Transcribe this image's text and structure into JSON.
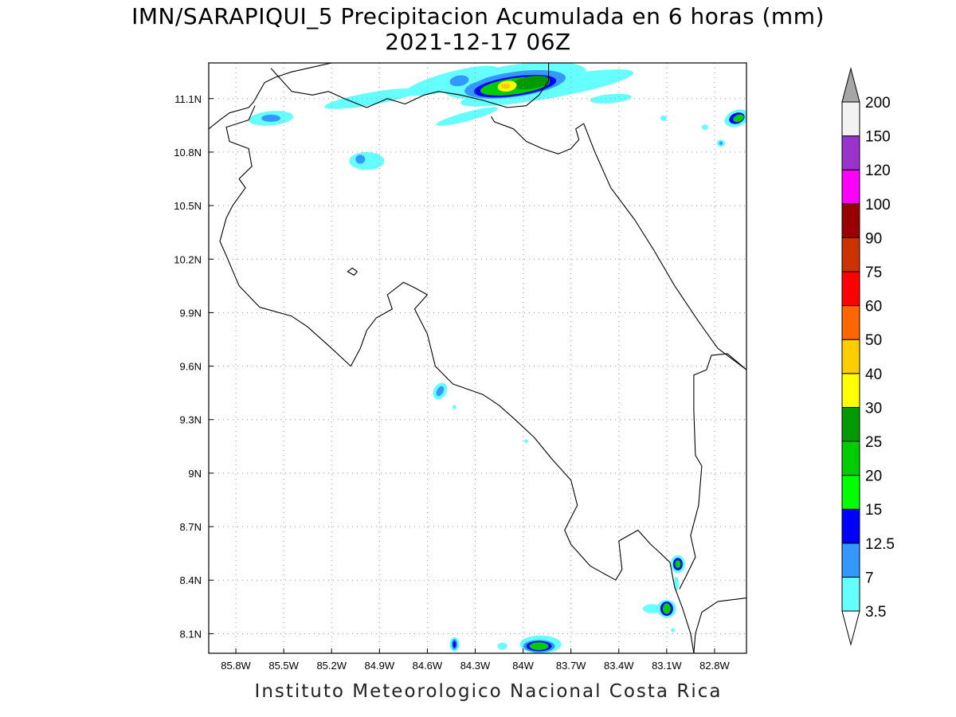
{
  "title_line1": "IMN/SARAPIQUI_5 Precipitacion Acumulada en 6 horas (mm)",
  "title_line2": "2021-12-17 06Z",
  "footer": "Instituto Meteorologico Nacional Costa Rica",
  "lat_ticks": [
    {
      "label": "11.1N",
      "value": 11.1
    },
    {
      "label": "10.8N",
      "value": 10.8
    },
    {
      "label": "10.5N",
      "value": 10.5
    },
    {
      "label": "10.2N",
      "value": 10.2
    },
    {
      "label": "9.9N",
      "value": 9.9
    },
    {
      "label": "9.6N",
      "value": 9.6
    },
    {
      "label": "9.3N",
      "value": 9.3
    },
    {
      "label": "9N",
      "value": 9.0
    },
    {
      "label": "8.7N",
      "value": 8.7
    },
    {
      "label": "8.4N",
      "value": 8.4
    },
    {
      "label": "8.1N",
      "value": 8.1
    }
  ],
  "lon_ticks": [
    {
      "label": "85.8W",
      "value": -85.8
    },
    {
      "label": "85.5W",
      "value": -85.5
    },
    {
      "label": "85.2W",
      "value": -85.2
    },
    {
      "label": "84.9W",
      "value": -84.9
    },
    {
      "label": "84.6W",
      "value": -84.6
    },
    {
      "label": "84.3W",
      "value": -84.3
    },
    {
      "label": "84W",
      "value": -84.0
    },
    {
      "label": "83.7W",
      "value": -83.7
    },
    {
      "label": "83.4W",
      "value": -83.4
    },
    {
      "label": "83.1W",
      "value": -83.1
    },
    {
      "label": "82.8W",
      "value": -82.8
    }
  ],
  "extent": {
    "lon_min": -85.97,
    "lon_max": -82.6,
    "lat_min": 7.99,
    "lat_max": 11.3
  },
  "colorbar": {
    "unit": "mm",
    "bins": [
      {
        "label": "3.5",
        "color": "#66ffff"
      },
      {
        "label": "7",
        "color": "#3399ff"
      },
      {
        "label": "12.5",
        "color": "#0000ff"
      },
      {
        "label": "15",
        "color": "#00ff00"
      },
      {
        "label": "20",
        "color": "#00cc00"
      },
      {
        "label": "25",
        "color": "#009900"
      },
      {
        "label": "30",
        "color": "#ffff00"
      },
      {
        "label": "40",
        "color": "#ffcc00"
      },
      {
        "label": "50",
        "color": "#ff6600"
      },
      {
        "label": "60",
        "color": "#ff0000"
      },
      {
        "label": "75",
        "color": "#cc3300"
      },
      {
        "label": "90",
        "color": "#990000"
      },
      {
        "label": "100",
        "color": "#ff00ff"
      },
      {
        "label": "120",
        "color": "#9933cc"
      },
      {
        "label": "150",
        "color": "#f2f2f2"
      },
      {
        "label": "200",
        "color": "#a6a6a6"
      }
    ]
  },
  "precip_cells": [
    {
      "lon": -84.05,
      "lat": 11.2,
      "rx": 0.45,
      "ry": 0.09,
      "level": 0,
      "rot": -8
    },
    {
      "lon": -83.85,
      "lat": 11.16,
      "rx": 0.55,
      "ry": 0.06,
      "level": 0,
      "rot": -10
    },
    {
      "lon": -84.05,
      "lat": 11.18,
      "rx": 0.32,
      "ry": 0.07,
      "level": 1,
      "rot": -8
    },
    {
      "lon": -84.05,
      "lat": 11.17,
      "rx": 0.26,
      "ry": 0.055,
      "level": 2,
      "rot": -8
    },
    {
      "lon": -84.05,
      "lat": 11.17,
      "rx": 0.22,
      "ry": 0.045,
      "level": 4,
      "rot": -8
    },
    {
      "lon": -83.95,
      "lat": 11.19,
      "rx": 0.12,
      "ry": 0.035,
      "level": 5,
      "rot": -8
    },
    {
      "lon": -84.1,
      "lat": 11.17,
      "rx": 0.06,
      "ry": 0.03,
      "level": 6,
      "rot": -8
    },
    {
      "lon": -84.11,
      "lat": 11.17,
      "rx": 0.03,
      "ry": 0.015,
      "level": 7,
      "rot": 0
    },
    {
      "lon": -84.45,
      "lat": 11.2,
      "rx": 0.3,
      "ry": 0.05,
      "level": 0,
      "rot": -15
    },
    {
      "lon": -84.4,
      "lat": 11.2,
      "rx": 0.06,
      "ry": 0.03,
      "level": 1,
      "rot": -10
    },
    {
      "lon": -84.95,
      "lat": 11.1,
      "rx": 0.3,
      "ry": 0.035,
      "level": 0,
      "rot": -10
    },
    {
      "lon": -84.35,
      "lat": 11.0,
      "rx": 0.2,
      "ry": 0.025,
      "level": 0,
      "rot": -15
    },
    {
      "lon": -85.58,
      "lat": 10.99,
      "rx": 0.14,
      "ry": 0.04,
      "level": 0,
      "rot": -5
    },
    {
      "lon": -85.58,
      "lat": 10.99,
      "rx": 0.06,
      "ry": 0.02,
      "level": 1,
      "rot": 0
    },
    {
      "lon": -83.45,
      "lat": 11.1,
      "rx": 0.13,
      "ry": 0.025,
      "level": 0,
      "rot": -5
    },
    {
      "lon": -83.5,
      "lat": 11.21,
      "rx": 0.08,
      "ry": 0.02,
      "level": 0,
      "rot": 0
    },
    {
      "lon": -84.98,
      "lat": 10.75,
      "rx": 0.11,
      "ry": 0.05,
      "level": 0,
      "rot": 0
    },
    {
      "lon": -85.02,
      "lat": 10.76,
      "rx": 0.03,
      "ry": 0.025,
      "level": 1,
      "rot": 0
    },
    {
      "lon": -82.66,
      "lat": 10.99,
      "rx": 0.08,
      "ry": 0.045,
      "level": 0,
      "rot": -20
    },
    {
      "lon": -82.66,
      "lat": 10.99,
      "rx": 0.05,
      "ry": 0.03,
      "level": 2,
      "rot": -20
    },
    {
      "lon": -82.65,
      "lat": 10.99,
      "rx": 0.035,
      "ry": 0.02,
      "level": 4,
      "rot": -20
    },
    {
      "lon": -82.86,
      "lat": 10.94,
      "rx": 0.02,
      "ry": 0.015,
      "level": 0,
      "rot": 0
    },
    {
      "lon": -82.76,
      "lat": 10.85,
      "rx": 0.025,
      "ry": 0.02,
      "level": 0,
      "rot": 0
    },
    {
      "lon": -82.76,
      "lat": 10.85,
      "rx": 0.01,
      "ry": 0.01,
      "level": 1,
      "rot": 0
    },
    {
      "lon": -83.12,
      "lat": 10.99,
      "rx": 0.02,
      "ry": 0.015,
      "level": 0,
      "rot": 0
    },
    {
      "lon": -84.52,
      "lat": 9.46,
      "rx": 0.04,
      "ry": 0.05,
      "level": 0,
      "rot": 30
    },
    {
      "lon": -84.52,
      "lat": 9.46,
      "rx": 0.02,
      "ry": 0.03,
      "level": 1,
      "rot": 30
    },
    {
      "lon": -84.43,
      "lat": 9.37,
      "rx": 0.012,
      "ry": 0.012,
      "level": 0,
      "rot": 0
    },
    {
      "lon": -83.98,
      "lat": 9.18,
      "rx": 0.012,
      "ry": 0.01,
      "level": 0,
      "rot": 0
    },
    {
      "lon": -83.03,
      "lat": 8.49,
      "rx": 0.045,
      "ry": 0.05,
      "level": 0,
      "rot": 0
    },
    {
      "lon": -83.03,
      "lat": 8.49,
      "rx": 0.03,
      "ry": 0.035,
      "level": 2,
      "rot": 0
    },
    {
      "lon": -83.03,
      "lat": 8.49,
      "rx": 0.018,
      "ry": 0.022,
      "level": 4,
      "rot": 0
    },
    {
      "lon": -83.04,
      "lat": 8.38,
      "rx": 0.015,
      "ry": 0.04,
      "level": 0,
      "rot": 0
    },
    {
      "lon": -83.1,
      "lat": 8.24,
      "rx": 0.06,
      "ry": 0.05,
      "level": 0,
      "rot": 0
    },
    {
      "lon": -83.19,
      "lat": 8.24,
      "rx": 0.06,
      "ry": 0.025,
      "level": 0,
      "rot": 0
    },
    {
      "lon": -83.1,
      "lat": 8.24,
      "rx": 0.04,
      "ry": 0.04,
      "level": 2,
      "rot": 0
    },
    {
      "lon": -83.1,
      "lat": 8.24,
      "rx": 0.025,
      "ry": 0.03,
      "level": 4,
      "rot": 0
    },
    {
      "lon": -83.06,
      "lat": 8.12,
      "rx": 0.012,
      "ry": 0.012,
      "level": 0,
      "rot": 0
    },
    {
      "lon": -84.43,
      "lat": 8.04,
      "rx": 0.03,
      "ry": 0.04,
      "level": 0,
      "rot": 0
    },
    {
      "lon": -84.43,
      "lat": 8.04,
      "rx": 0.018,
      "ry": 0.03,
      "level": 1,
      "rot": 0
    },
    {
      "lon": -84.43,
      "lat": 8.04,
      "rx": 0.01,
      "ry": 0.02,
      "level": 2,
      "rot": 0
    },
    {
      "lon": -84.13,
      "lat": 8.03,
      "rx": 0.03,
      "ry": 0.02,
      "level": 0,
      "rot": 0
    },
    {
      "lon": -83.89,
      "lat": 8.04,
      "rx": 0.13,
      "ry": 0.05,
      "level": 0,
      "rot": 0
    },
    {
      "lon": -83.9,
      "lat": 8.03,
      "rx": 0.1,
      "ry": 0.035,
      "level": 1,
      "rot": 0
    },
    {
      "lon": -83.9,
      "lat": 8.03,
      "rx": 0.08,
      "ry": 0.028,
      "level": 2,
      "rot": 0
    },
    {
      "lon": -83.9,
      "lat": 8.03,
      "rx": 0.06,
      "ry": 0.022,
      "level": 4,
      "rot": 0
    }
  ],
  "coastlines": {
    "nicaragua_lake_shore": [
      [
        -85.58,
        11.27
      ],
      [
        -85.45,
        11.14
      ],
      [
        -85.32,
        11.12
      ],
      [
        -85.22,
        11.14
      ],
      [
        -85.12,
        11.1
      ],
      [
        -84.98,
        11.05
      ],
      [
        -84.85,
        11.1
      ],
      [
        -84.74,
        11.07
      ],
      [
        -84.62,
        11.12
      ],
      [
        -84.53,
        11.14
      ],
      [
        -84.39,
        11.12
      ],
      [
        -84.25,
        11.09
      ],
      [
        -84.1,
        11.05
      ],
      [
        -83.98,
        11.06
      ],
      [
        -83.9,
        11.12
      ],
      [
        -83.84,
        11.2
      ],
      [
        -83.84,
        11.3
      ]
    ],
    "nicaragua_cr_border": [
      [
        -85.97,
        10.93
      ],
      [
        -85.9,
        10.98
      ],
      [
        -85.84,
        11.02
      ],
      [
        -85.72,
        11.05
      ],
      [
        -85.69,
        11.08
      ],
      [
        -85.62,
        11.19
      ],
      [
        -85.55,
        11.22
      ],
      [
        -85.45,
        11.25
      ],
      [
        -85.35,
        11.27
      ],
      [
        -85.2,
        11.3
      ]
    ],
    "inland_border": [
      [
        -84.2,
        11.0
      ],
      [
        -84.18,
        10.97
      ],
      [
        -84.06,
        10.93
      ],
      [
        -83.98,
        10.86
      ],
      [
        -83.88,
        10.82
      ],
      [
        -83.78,
        10.79
      ],
      [
        -83.7,
        10.82
      ],
      [
        -83.65,
        10.87
      ],
      [
        -83.67,
        10.93
      ],
      [
        -83.62,
        10.96
      ]
    ],
    "pacific_coast": [
      [
        -85.68,
        11.06
      ],
      [
        -85.72,
        10.98
      ],
      [
        -85.86,
        10.94
      ],
      [
        -85.84,
        10.86
      ],
      [
        -85.72,
        10.82
      ],
      [
        -85.7,
        10.72
      ],
      [
        -85.78,
        10.65
      ],
      [
        -85.74,
        10.6
      ],
      [
        -85.82,
        10.5
      ],
      [
        -85.86,
        10.43
      ],
      [
        -85.9,
        10.3
      ],
      [
        -85.86,
        10.22
      ],
      [
        -85.78,
        10.05
      ],
      [
        -85.65,
        9.93
      ],
      [
        -85.45,
        9.88
      ],
      [
        -85.35,
        9.82
      ],
      [
        -85.2,
        9.7
      ],
      [
        -85.08,
        9.6
      ],
      [
        -85.02,
        9.7
      ],
      [
        -84.98,
        9.8
      ],
      [
        -84.92,
        9.87
      ],
      [
        -84.82,
        9.92
      ],
      [
        -84.85,
        10.0
      ],
      [
        -84.75,
        10.07
      ],
      [
        -84.68,
        10.04
      ],
      [
        -84.6,
        10.0
      ],
      [
        -84.68,
        9.92
      ],
      [
        -84.6,
        9.78
      ],
      [
        -84.55,
        9.6
      ],
      [
        -84.44,
        9.5
      ],
      [
        -84.25,
        9.44
      ],
      [
        -84.15,
        9.38
      ],
      [
        -84.05,
        9.3
      ],
      [
        -83.93,
        9.2
      ],
      [
        -83.82,
        9.08
      ],
      [
        -83.7,
        8.96
      ],
      [
        -83.66,
        8.82
      ],
      [
        -83.74,
        8.68
      ],
      [
        -83.7,
        8.6
      ],
      [
        -83.58,
        8.48
      ],
      [
        -83.42,
        8.4
      ],
      [
        -83.38,
        8.46
      ],
      [
        -83.4,
        8.62
      ],
      [
        -83.28,
        8.68
      ],
      [
        -83.2,
        8.6
      ],
      [
        -83.15,
        8.56
      ],
      [
        -83.08,
        8.5
      ],
      [
        -83.05,
        8.36
      ],
      [
        -83.0,
        8.24
      ],
      [
        -82.95,
        8.1
      ],
      [
        -82.93,
        7.99
      ]
    ],
    "caribbean_coast": [
      [
        -83.62,
        10.96
      ],
      [
        -83.55,
        10.8
      ],
      [
        -83.45,
        10.6
      ],
      [
        -83.3,
        10.42
      ],
      [
        -83.18,
        10.25
      ],
      [
        -83.05,
        10.05
      ],
      [
        -82.9,
        9.85
      ],
      [
        -82.78,
        9.7
      ],
      [
        -82.6,
        9.58
      ]
    ],
    "panama_border": [
      [
        -82.6,
        9.58
      ],
      [
        -82.72,
        9.67
      ],
      [
        -82.82,
        9.66
      ],
      [
        -82.85,
        9.58
      ],
      [
        -82.93,
        9.55
      ],
      [
        -82.93,
        9.35
      ],
      [
        -82.92,
        9.1
      ],
      [
        -82.88,
        9.04
      ],
      [
        -82.9,
        8.82
      ],
      [
        -82.95,
        8.65
      ],
      [
        -82.92,
        8.53
      ],
      [
        -82.98,
        8.42
      ],
      [
        -83.02,
        8.35
      ]
    ],
    "panama_pacific": [
      [
        -82.93,
        7.99
      ],
      [
        -82.92,
        8.1
      ],
      [
        -82.88,
        8.22
      ],
      [
        -82.78,
        8.28
      ],
      [
        -82.6,
        8.3
      ]
    ]
  }
}
